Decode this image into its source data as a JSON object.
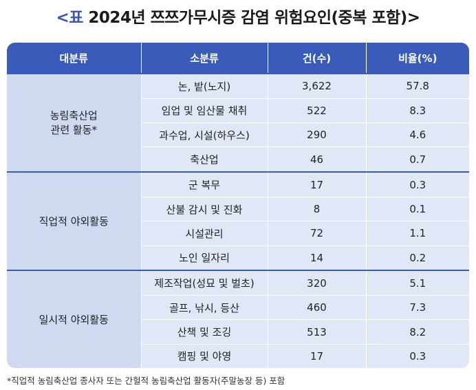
{
  "title": {
    "prefix": "<표",
    "text": " 2024년 쯔쯔가무시증 감염 위험요인(중복 포함)>"
  },
  "table": {
    "headers": [
      "대분류",
      "소분류",
      "건(수)",
      "비율(%)"
    ],
    "groups": [
      {
        "category_lines": [
          "농림축산업",
          "관련 활동*"
        ],
        "rows": [
          {
            "sub": "논, 밭(노지)",
            "count": "3,622",
            "ratio": "57.8"
          },
          {
            "sub": "임업 및 임산물 채취",
            "count": "522",
            "ratio": "8.3"
          },
          {
            "sub": "과수업, 시설(하우스)",
            "count": "290",
            "ratio": "4.6"
          },
          {
            "sub": "축산업",
            "count": "46",
            "ratio": "0.7"
          }
        ]
      },
      {
        "category_lines": [
          "직업적 야외활동"
        ],
        "rows": [
          {
            "sub": "군 복무",
            "count": "17",
            "ratio": "0.3"
          },
          {
            "sub": "산불 감시 및 진화",
            "count": "8",
            "ratio": "0.1"
          },
          {
            "sub": "시설관리",
            "count": "72",
            "ratio": "1.1"
          },
          {
            "sub": "노인 일자리",
            "count": "14",
            "ratio": "0.2"
          }
        ]
      },
      {
        "category_lines": [
          "일시적 야외활동"
        ],
        "rows": [
          {
            "sub": "제조작업(성묘 및 벌초)",
            "count": "320",
            "ratio": "5.1"
          },
          {
            "sub": "골프, 낚시, 등산",
            "count": "460",
            "ratio": "7.3"
          },
          {
            "sub": "산책 및 조깅",
            "count": "513",
            "ratio": "8.2"
          },
          {
            "sub": "캠핑 및 야영",
            "count": "17",
            "ratio": "0.3"
          }
        ]
      }
    ]
  },
  "footnote": "*직업적 농림축산업 종사자 또는 간헐적 농림축산업 활동자(주말농장 등) 포함",
  "colors": {
    "header_bg": "#3b5bba",
    "category_bg": "#cfdaf1",
    "cell_bg": "#e0e7f6",
    "title_accent": "#3a57b8"
  }
}
